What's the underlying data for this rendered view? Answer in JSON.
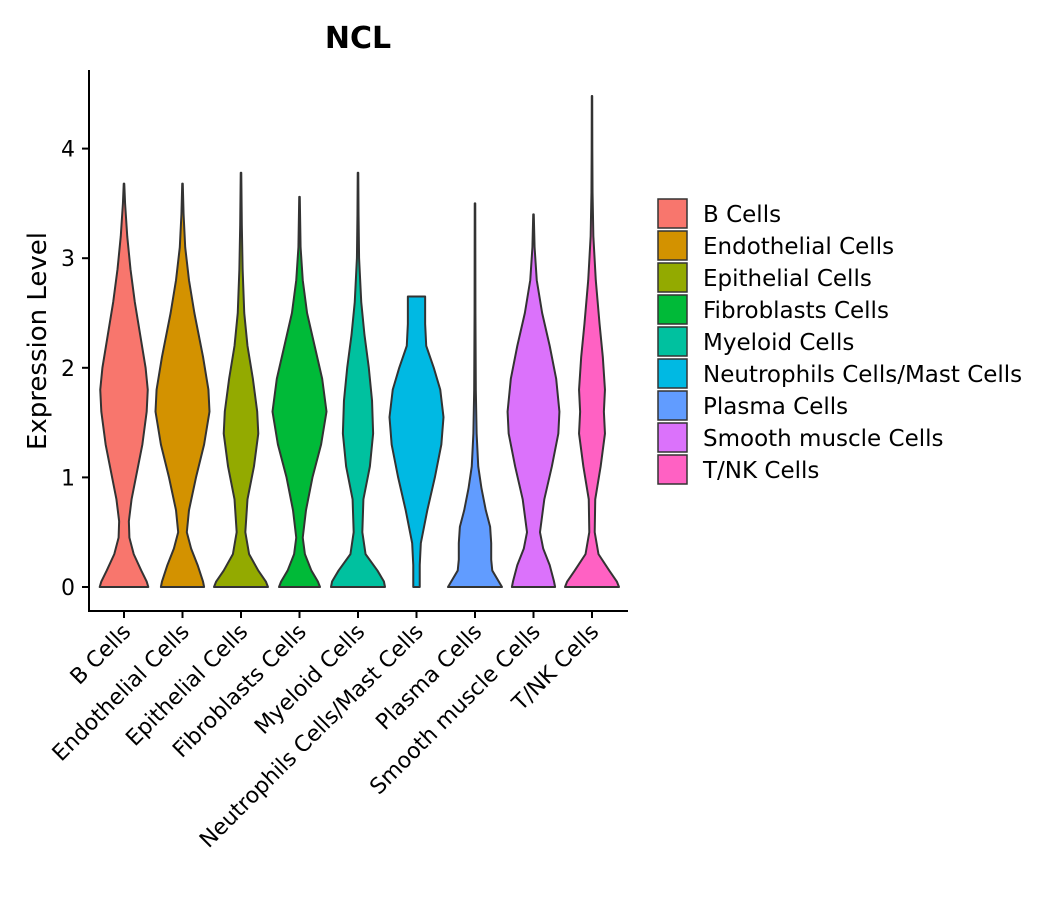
{
  "chart_data": {
    "type": "violin",
    "title": "NCL",
    "xlabel": "",
    "ylabel": "Expression Level",
    "ylim": [
      -0.2,
      4.7
    ],
    "yticks": [
      0,
      1,
      2,
      3,
      4
    ],
    "categories": [
      "B Cells",
      "Endothelial Cells",
      "Epithelial Cells",
      "Fibroblasts Cells",
      "Myeloid Cells",
      "Neutrophils Cells/Mast Cells",
      "Plasma Cells",
      "Smooth muscle Cells",
      "T/NK Cells"
    ],
    "legend": {
      "position": "right"
    },
    "series": [
      {
        "name": "B Cells",
        "color": "#F8766D",
        "min": 0,
        "max": 3.68,
        "profile": [
          [
            0,
            0.45
          ],
          [
            0.05,
            0.42
          ],
          [
            0.15,
            0.32
          ],
          [
            0.3,
            0.18
          ],
          [
            0.45,
            0.1
          ],
          [
            0.6,
            0.09
          ],
          [
            0.8,
            0.14
          ],
          [
            1.0,
            0.22
          ],
          [
            1.3,
            0.34
          ],
          [
            1.6,
            0.42
          ],
          [
            1.8,
            0.44
          ],
          [
            2.0,
            0.4
          ],
          [
            2.3,
            0.3
          ],
          [
            2.6,
            0.2
          ],
          [
            2.9,
            0.12
          ],
          [
            3.2,
            0.06
          ],
          [
            3.5,
            0.02
          ],
          [
            3.68,
            0.005
          ]
        ]
      },
      {
        "name": "Endothelial Cells",
        "color": "#D39200",
        "min": 0,
        "max": 3.68,
        "profile": [
          [
            0,
            0.4
          ],
          [
            0.05,
            0.38
          ],
          [
            0.2,
            0.28
          ],
          [
            0.35,
            0.16
          ],
          [
            0.5,
            0.08
          ],
          [
            0.7,
            0.12
          ],
          [
            1.0,
            0.25
          ],
          [
            1.3,
            0.4
          ],
          [
            1.6,
            0.5
          ],
          [
            1.8,
            0.48
          ],
          [
            2.1,
            0.38
          ],
          [
            2.5,
            0.22
          ],
          [
            2.8,
            0.12
          ],
          [
            3.1,
            0.05
          ],
          [
            3.4,
            0.02
          ],
          [
            3.68,
            0.005
          ]
        ]
      },
      {
        "name": "Epithelial Cells",
        "color": "#93AA00",
        "min": 0,
        "max": 3.78,
        "profile": [
          [
            0,
            0.5
          ],
          [
            0.05,
            0.46
          ],
          [
            0.15,
            0.32
          ],
          [
            0.3,
            0.15
          ],
          [
            0.5,
            0.08
          ],
          [
            0.8,
            0.12
          ],
          [
            1.1,
            0.24
          ],
          [
            1.4,
            0.32
          ],
          [
            1.6,
            0.3
          ],
          [
            1.9,
            0.22
          ],
          [
            2.2,
            0.12
          ],
          [
            2.5,
            0.06
          ],
          [
            2.9,
            0.03
          ],
          [
            3.3,
            0.015
          ],
          [
            3.78,
            0.005
          ]
        ]
      },
      {
        "name": "Fibroblasts Cells",
        "color": "#00BA38",
        "min": 0,
        "max": 3.56,
        "profile": [
          [
            0,
            0.38
          ],
          [
            0.05,
            0.34
          ],
          [
            0.15,
            0.22
          ],
          [
            0.3,
            0.1
          ],
          [
            0.45,
            0.06
          ],
          [
            0.7,
            0.12
          ],
          [
            1.0,
            0.24
          ],
          [
            1.3,
            0.4
          ],
          [
            1.6,
            0.5
          ],
          [
            1.9,
            0.42
          ],
          [
            2.2,
            0.28
          ],
          [
            2.5,
            0.14
          ],
          [
            2.8,
            0.06
          ],
          [
            3.1,
            0.02
          ],
          [
            3.56,
            0.005
          ]
        ]
      },
      {
        "name": "Myeloid Cells",
        "color": "#00C19F",
        "min": 0,
        "max": 3.78,
        "profile": [
          [
            0,
            0.5
          ],
          [
            0.05,
            0.48
          ],
          [
            0.15,
            0.36
          ],
          [
            0.3,
            0.14
          ],
          [
            0.5,
            0.08
          ],
          [
            0.8,
            0.1
          ],
          [
            1.1,
            0.22
          ],
          [
            1.4,
            0.28
          ],
          [
            1.7,
            0.26
          ],
          [
            2.0,
            0.2
          ],
          [
            2.3,
            0.12
          ],
          [
            2.6,
            0.06
          ],
          [
            3.0,
            0.02
          ],
          [
            3.4,
            0.01
          ],
          [
            3.78,
            0.005
          ]
        ]
      },
      {
        "name": "Neutrophils Cells/Mast Cells",
        "color": "#00B9E3",
        "min": 0,
        "max": 2.65,
        "profile": [
          [
            0,
            0.06
          ],
          [
            0.2,
            0.06
          ],
          [
            0.4,
            0.08
          ],
          [
            0.7,
            0.2
          ],
          [
            1.0,
            0.34
          ],
          [
            1.3,
            0.46
          ],
          [
            1.55,
            0.5
          ],
          [
            1.8,
            0.44
          ],
          [
            2.0,
            0.32
          ],
          [
            2.2,
            0.18
          ],
          [
            2.4,
            0.16
          ],
          [
            2.55,
            0.16
          ],
          [
            2.65,
            0.16
          ]
        ]
      },
      {
        "name": "Plasma Cells",
        "color": "#619CFF",
        "min": 0,
        "max": 3.5,
        "profile": [
          [
            0,
            0.5
          ],
          [
            0.05,
            0.44
          ],
          [
            0.15,
            0.32
          ],
          [
            0.25,
            0.3
          ],
          [
            0.4,
            0.3
          ],
          [
            0.55,
            0.28
          ],
          [
            0.7,
            0.2
          ],
          [
            0.9,
            0.12
          ],
          [
            1.1,
            0.06
          ],
          [
            1.4,
            0.03
          ],
          [
            1.8,
            0.015
          ],
          [
            2.5,
            0.008
          ],
          [
            3.5,
            0.005
          ]
        ]
      },
      {
        "name": "Smooth muscle Cells",
        "color": "#DB72FB",
        "min": 0,
        "max": 3.4,
        "profile": [
          [
            0,
            0.4
          ],
          [
            0.05,
            0.38
          ],
          [
            0.2,
            0.3
          ],
          [
            0.35,
            0.18
          ],
          [
            0.5,
            0.12
          ],
          [
            0.8,
            0.2
          ],
          [
            1.1,
            0.34
          ],
          [
            1.4,
            0.46
          ],
          [
            1.6,
            0.48
          ],
          [
            1.9,
            0.42
          ],
          [
            2.2,
            0.3
          ],
          [
            2.5,
            0.16
          ],
          [
            2.8,
            0.06
          ],
          [
            3.1,
            0.02
          ],
          [
            3.4,
            0.005
          ]
        ]
      },
      {
        "name": "T/NK Cells",
        "color": "#FF61C3",
        "min": 0,
        "max": 4.48,
        "profile": [
          [
            0,
            0.5
          ],
          [
            0.05,
            0.46
          ],
          [
            0.15,
            0.32
          ],
          [
            0.3,
            0.12
          ],
          [
            0.5,
            0.05
          ],
          [
            0.8,
            0.06
          ],
          [
            1.1,
            0.16
          ],
          [
            1.4,
            0.24
          ],
          [
            1.6,
            0.22
          ],
          [
            1.8,
            0.24
          ],
          [
            2.1,
            0.2
          ],
          [
            2.4,
            0.14
          ],
          [
            2.8,
            0.07
          ],
          [
            3.2,
            0.025
          ],
          [
            3.6,
            0.01
          ],
          [
            4.0,
            0.006
          ],
          [
            4.48,
            0.004
          ]
        ]
      }
    ]
  }
}
